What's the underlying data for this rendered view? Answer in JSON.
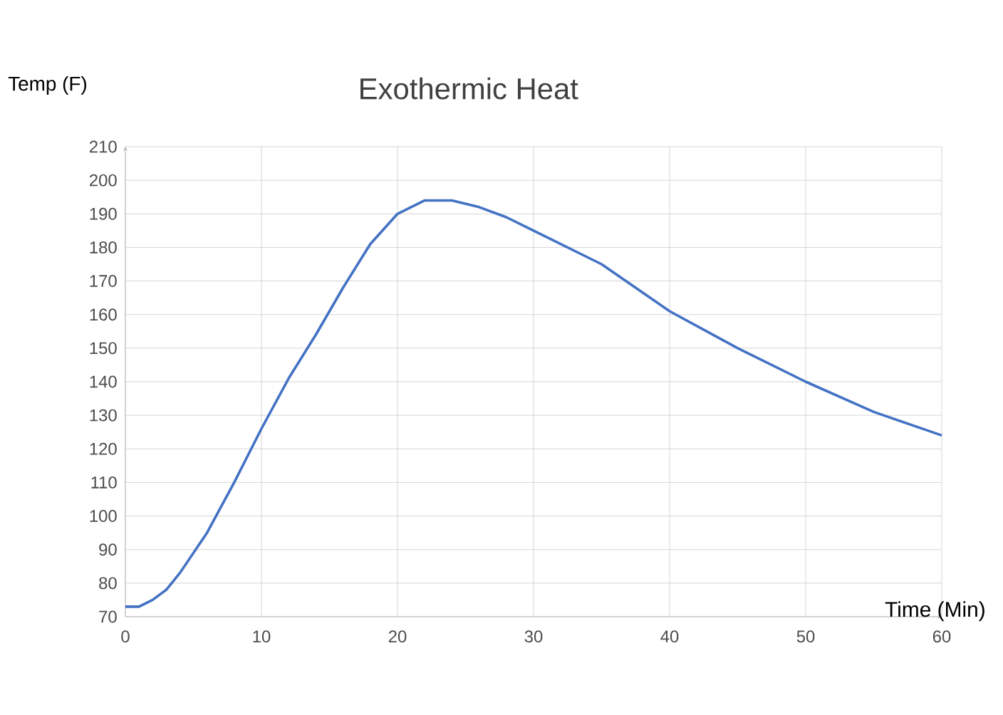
{
  "chart_data": {
    "type": "line",
    "title": "Exothermic Heat",
    "xlabel": "Time (Min)",
    "ylabel": "Temp (F)",
    "x": [
      0,
      1,
      2,
      3,
      4,
      6,
      8,
      10,
      12,
      14,
      16,
      18,
      20,
      22,
      23,
      24,
      26,
      28,
      30,
      35,
      40,
      45,
      50,
      55,
      60
    ],
    "series": [
      {
        "color": "#4472c4",
        "values": [
          73,
          73,
          75,
          78,
          83,
          95,
          110,
          126,
          141,
          154,
          168,
          181,
          190,
          194,
          194,
          194,
          192,
          189,
          185,
          175,
          161,
          150,
          140,
          131,
          124
        ]
      }
    ],
    "xlim": [
      0,
      60
    ],
    "xticks": [
      0,
      10,
      20,
      30,
      40,
      50,
      60
    ],
    "ylim": [
      70,
      210
    ],
    "yticks": [
      70,
      80,
      90,
      100,
      110,
      120,
      130,
      140,
      150,
      160,
      170,
      180,
      190,
      200,
      210
    ],
    "grid": true,
    "marker": "none",
    "line_style": "solid"
  }
}
